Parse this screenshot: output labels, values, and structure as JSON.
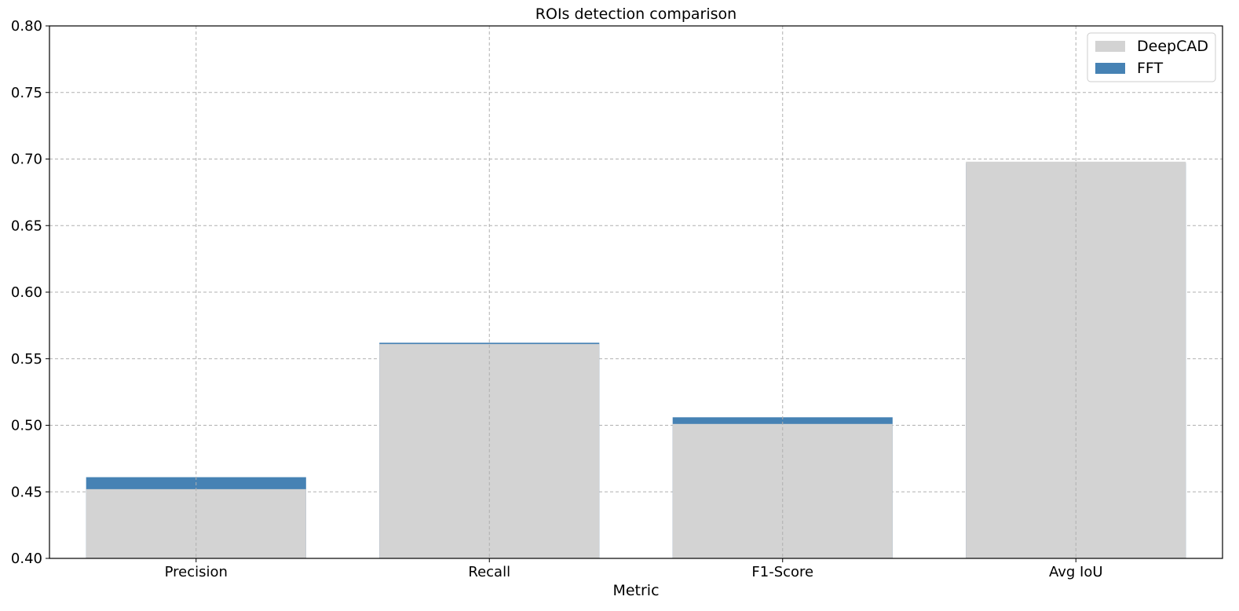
{
  "chart_data": {
    "type": "bar",
    "title": "ROIs detection comparison",
    "xlabel": "Metric",
    "ylabel": "",
    "categories": [
      "Precision",
      "Recall",
      "F1-Score",
      "Avg IoU"
    ],
    "ylim": [
      0.4,
      0.8
    ],
    "yticks": [
      "0.40",
      "0.45",
      "0.50",
      "0.55",
      "0.60",
      "0.65",
      "0.70",
      "0.75",
      "0.80"
    ],
    "grid": true,
    "legend_position": "top-right",
    "series": [
      {
        "name": "FFT",
        "values": [
          0.461,
          0.562,
          0.506,
          0.697
        ],
        "color": "#4682b4"
      },
      {
        "name": "DeepCAD",
        "values": [
          0.452,
          0.561,
          0.501,
          0.698
        ],
        "color": "#d3d3d3"
      }
    ],
    "legend": [
      {
        "name": "DeepCAD",
        "color": "#d3d3d3"
      },
      {
        "name": "FFT",
        "color": "#4682b4"
      }
    ]
  }
}
